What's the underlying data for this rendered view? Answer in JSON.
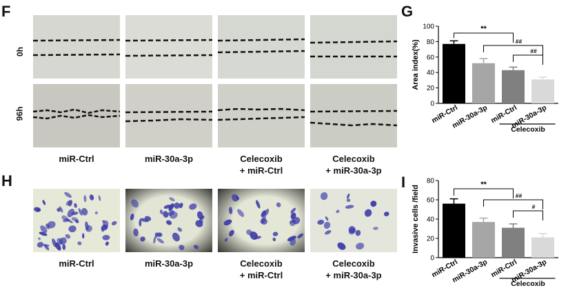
{
  "figure": {
    "panel_f": "F",
    "panel_g": "G",
    "panel_h": "H",
    "panel_i": "I",
    "row_0h": "0h",
    "row_96h": "96h"
  },
  "captions_f": [
    {
      "line1": "miR-Ctrl",
      "line2": ""
    },
    {
      "line1": "miR-30a-3p",
      "line2": ""
    },
    {
      "line1": "Celecoxib",
      "line2": "+ miR-Ctrl"
    },
    {
      "line1": "Celecoxib",
      "line2": "+ miR-30a-3p"
    }
  ],
  "captions_h": [
    {
      "line1": "miR-Ctrl",
      "line2": ""
    },
    {
      "line1": "miR-30a-3p",
      "line2": ""
    },
    {
      "line1": "Celecoxib",
      "line2": "+ miR-Ctrl"
    },
    {
      "line1": "Celecoxib",
      "line2": "+ miR-30a-3p"
    }
  ],
  "colors": {
    "bar_black": "#000000",
    "bar_dark_gray": "#7f7f7f",
    "bar_mid_gray": "#a0a0a0",
    "bar_light_gray": "#d9d9d9",
    "stain": "#3a3aa8",
    "scratch_bg": "#d8d8d2"
  },
  "chart_data": [
    {
      "type": "bar",
      "ylabel": "Area index(%)",
      "ylim": [
        0,
        100
      ],
      "yticks": [
        "0",
        "20",
        "40",
        "60",
        "80",
        "100"
      ],
      "categories": [
        "miR-Ctrl",
        "miR-30a-3p",
        "miR-Ctrl",
        "miR-30a-3p"
      ],
      "values": [
        77,
        52,
        43,
        31
      ],
      "errors": [
        4,
        6,
        4,
        3
      ],
      "group_label": "Celecoxib",
      "significance": [
        {
          "from": 0,
          "to": 2,
          "label": "**"
        },
        {
          "from": 1,
          "to": 3,
          "label": "##"
        },
        {
          "from": 2,
          "to": 3,
          "label": "##"
        }
      ]
    },
    {
      "type": "bar",
      "ylabel": "Invasive cells /field",
      "ylim": [
        0,
        80
      ],
      "yticks": [
        "0",
        "20",
        "40",
        "60",
        "80"
      ],
      "categories": [
        "miR-Ctrl",
        "miR-30a-3p",
        "miR-Ctrl",
        "miR-30a-3p"
      ],
      "values": [
        56,
        37,
        31,
        21
      ],
      "errors": [
        5,
        4,
        4,
        4
      ],
      "group_label": "Celecoxib",
      "significance": [
        {
          "from": 0,
          "to": 2,
          "label": "**"
        },
        {
          "from": 1,
          "to": 3,
          "label": "##"
        },
        {
          "from": 2,
          "to": 3,
          "label": "#"
        }
      ]
    }
  ]
}
